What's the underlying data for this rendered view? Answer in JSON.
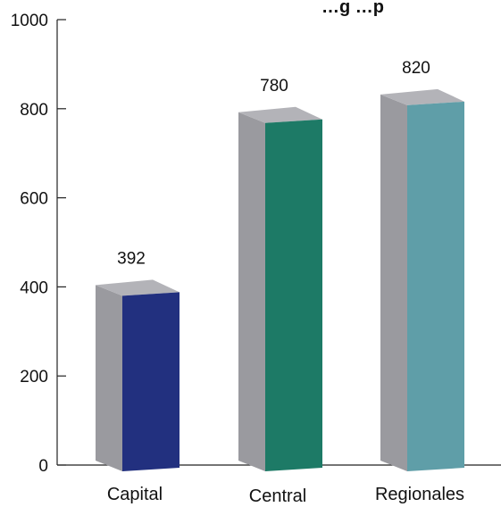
{
  "chart_data": {
    "type": "bar",
    "title": "…g  …p",
    "categories": [
      "Capital",
      "Central",
      "Regionales"
    ],
    "values": [
      392,
      780,
      820
    ],
    "value_labels": [
      "392",
      "780",
      "820"
    ],
    "ylim": [
      0,
      1000
    ],
    "yticks": [
      0,
      200,
      400,
      600,
      800,
      1000
    ],
    "ytick_labels": [
      "0",
      "200",
      "400",
      "600",
      "800",
      "1000"
    ],
    "xlabel": "",
    "ylabel": "",
    "grid": false,
    "legend": "none",
    "style": "3d-bars",
    "colors": {
      "series": [
        "#22307f",
        "#1d7a66",
        "#5f9ea8"
      ],
      "side": "#9a9a9f",
      "top": "#b3b3b8",
      "axis": "#222222"
    }
  }
}
